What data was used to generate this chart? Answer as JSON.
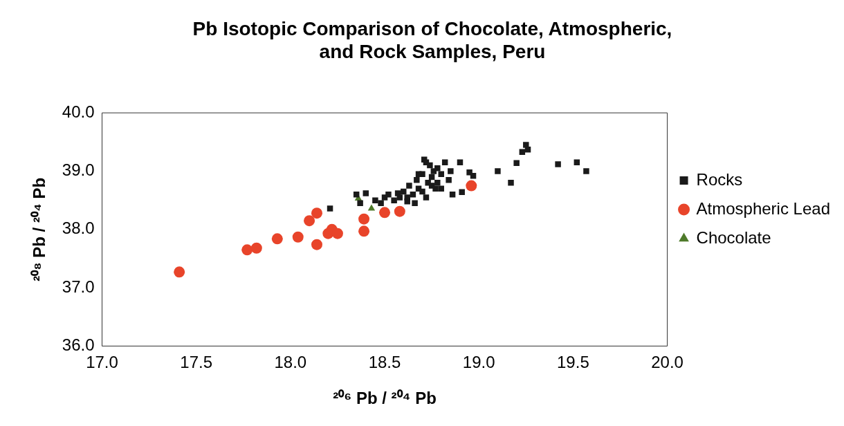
{
  "chart_data": {
    "type": "scatter",
    "title": [
      "Pb Isotopic Comparison of Chocolate, Atmospheric,",
      "and Rock Samples, Peru"
    ],
    "xlabel": "²⁰⁶ Pb / ²⁰⁴ Pb",
    "ylabel": "²⁰⁸ Pb / ²⁰⁴ Pb",
    "xlim": [
      17,
      20
    ],
    "xticks": [
      {
        "value": 17,
        "label": "17.0"
      },
      {
        "value": 17.5,
        "label": "17.5"
      },
      {
        "value": 18,
        "label": "18.0"
      },
      {
        "value": 18.5,
        "label": "18.5"
      },
      {
        "value": 19,
        "label": "19.0"
      },
      {
        "value": 19.5,
        "label": "19.5"
      },
      {
        "value": 20,
        "label": "20.0"
      }
    ],
    "ylim": [
      36,
      40
    ],
    "yticks": [
      {
        "value": 36,
        "label": "36.0"
      },
      {
        "value": 37,
        "label": "37.0"
      },
      {
        "value": 38,
        "label": "38.0"
      },
      {
        "value": 39,
        "label": "39.0"
      },
      {
        "value": 40,
        "label": "40.0"
      }
    ],
    "grid": false,
    "legend": "right",
    "series": [
      {
        "name": "Rocks",
        "color": "#1a1a1a",
        "marker": "square",
        "x": [
          18.21,
          18.35,
          18.37,
          18.4,
          18.45,
          18.48,
          18.5,
          18.52,
          18.55,
          18.57,
          18.6,
          18.62,
          18.63,
          18.65,
          18.66,
          18.67,
          18.68,
          18.7,
          18.71,
          18.72,
          18.73,
          18.74,
          18.75,
          18.76,
          18.77,
          18.78,
          18.8,
          18.82,
          18.84,
          18.85,
          18.7,
          18.75,
          18.62,
          18.58,
          18.68,
          18.72,
          18.78,
          18.8,
          18.9,
          18.95,
          18.97,
          18.86,
          18.91,
          19.1,
          19.17,
          19.2,
          19.23,
          19.25,
          19.26,
          19.42,
          19.52,
          19.57
        ],
        "values": [
          38.36,
          38.6,
          38.45,
          38.62,
          38.5,
          38.45,
          38.55,
          38.6,
          38.5,
          38.62,
          38.65,
          38.55,
          38.75,
          38.6,
          38.45,
          38.85,
          38.7,
          38.95,
          39.2,
          38.55,
          38.8,
          39.1,
          38.9,
          39.0,
          38.7,
          39.05,
          38.95,
          39.15,
          38.85,
          39.0,
          38.65,
          38.75,
          38.48,
          38.55,
          38.95,
          39.15,
          38.8,
          38.7,
          39.15,
          38.98,
          38.92,
          38.6,
          38.64,
          39.0,
          38.8,
          39.14,
          39.33,
          39.45,
          39.37,
          39.12,
          39.15,
          39.0
        ]
      },
      {
        "name": "Atmospheric Lead",
        "color": "#e8442a",
        "marker": "circle",
        "x": [
          17.41,
          17.77,
          17.82,
          17.93,
          18.04,
          18.1,
          18.14,
          18.14,
          18.2,
          18.22,
          18.25,
          18.39,
          18.39,
          18.5,
          18.58,
          18.96
        ],
        "values": [
          37.27,
          37.65,
          37.68,
          37.84,
          37.87,
          38.15,
          38.28,
          37.74,
          37.93,
          38.0,
          37.93,
          38.18,
          37.97,
          38.29,
          38.31,
          38.75
        ]
      },
      {
        "name": "Chocolate",
        "color": "#4e7a2a",
        "marker": "triangle",
        "x": [
          18.36,
          18.43
        ],
        "values": [
          38.53,
          38.36
        ]
      }
    ]
  }
}
